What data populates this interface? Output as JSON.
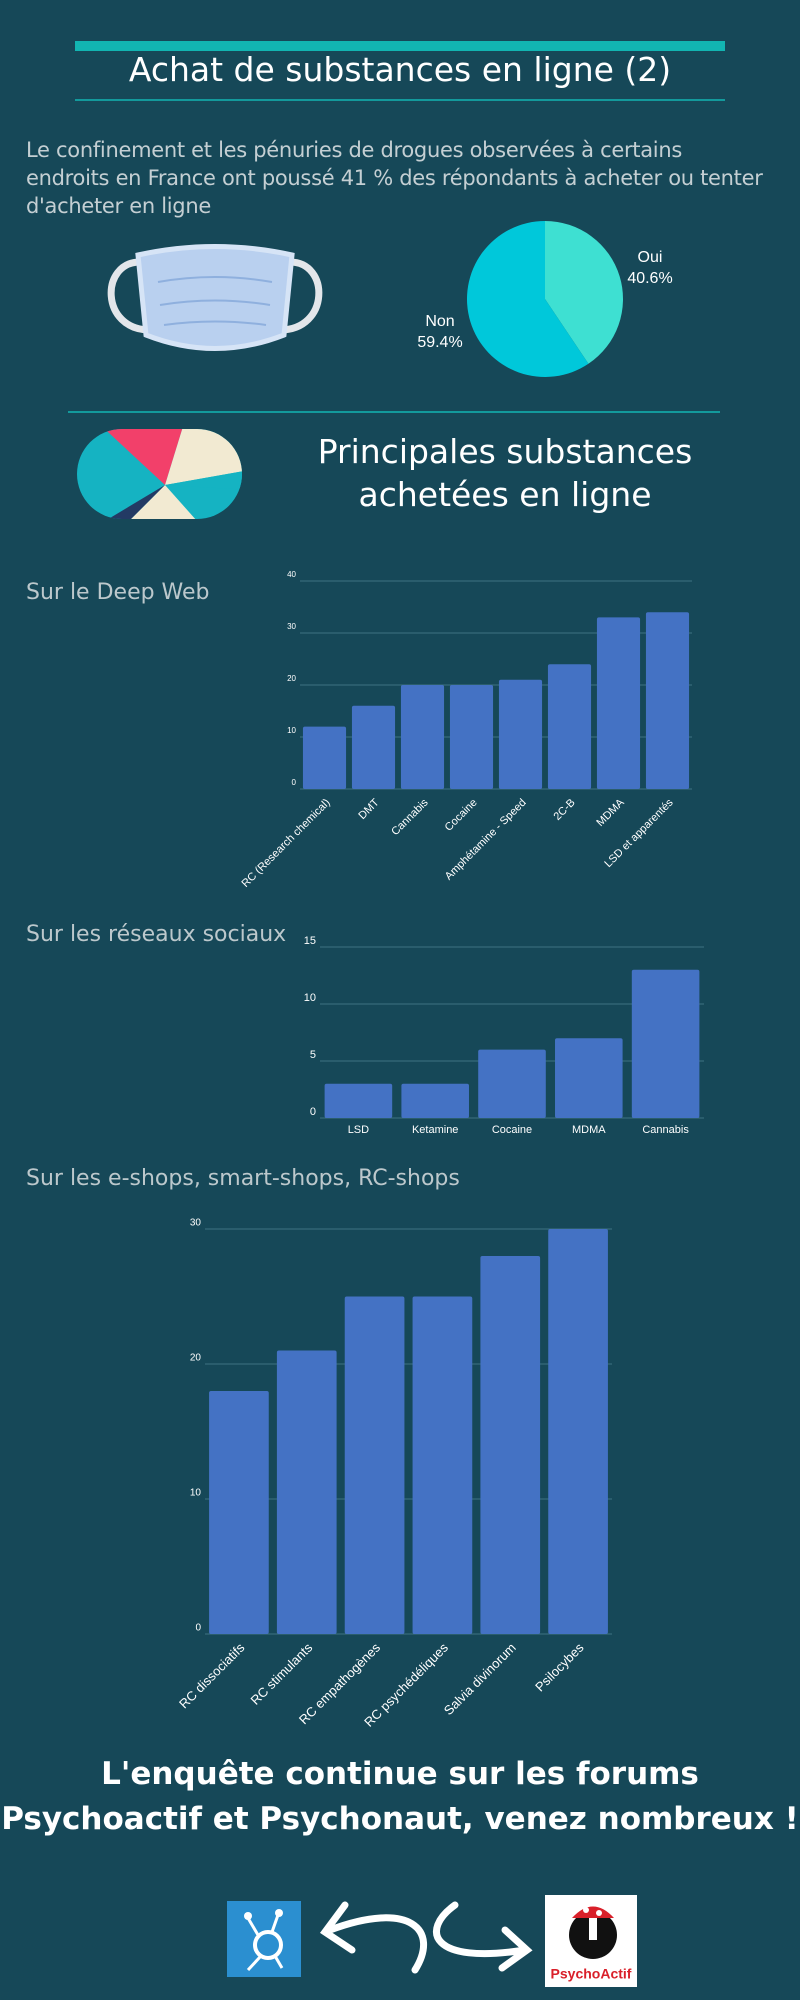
{
  "header": {
    "title": "Achat de substances en ligne (2)"
  },
  "intro": "Le confinement et les pénuries de drogues observées à certains endroits en France ont poussé 41 % des répondants à acheter ou tenter d'acheter en ligne",
  "heading": "Principales substances achetées en ligne",
  "footer": "L'enquête continue sur les forums Psychoactif et Psychonaut, venez nombreux !",
  "logo_text": "PsychoActif",
  "chart_data": [
    {
      "type": "pie",
      "categories": [
        "Oui",
        "Non"
      ],
      "values": [
        40.6,
        59.4
      ],
      "value_labels": [
        "40.6%",
        "59.4%"
      ],
      "colors": [
        "#3ee0d2",
        "#00c8da"
      ]
    },
    {
      "type": "bar",
      "title": "Sur le Deep Web",
      "categories": [
        "RC (Research chemical)",
        "DMT",
        "Cannabis",
        "Cocaine",
        "Amphétamine - Speed",
        "2C-B",
        "MDMA",
        "LSD et apparentés"
      ],
      "values": [
        12,
        16,
        20,
        20,
        21,
        24,
        33,
        34
      ],
      "color": "#4472c4",
      "ylim": [
        0,
        40
      ],
      "yticks": [
        0,
        10,
        20,
        30,
        40
      ],
      "grid": true
    },
    {
      "type": "bar",
      "title": "Sur les réseaux sociaux",
      "categories": [
        "LSD",
        "Ketamine",
        "Cocaine",
        "MDMA",
        "Cannabis"
      ],
      "values": [
        3,
        3,
        6,
        7,
        13
      ],
      "color": "#4472c4",
      "ylim": [
        0,
        15
      ],
      "yticks": [
        0,
        5,
        10,
        15
      ],
      "grid": true
    },
    {
      "type": "bar",
      "title": "Sur les e-shops, smart-shops, RC-shops",
      "categories": [
        "RC dissociatifs",
        "RC stimulants",
        "RC empathogènes",
        "RC psychédéliques",
        "Salvia divinorum",
        "Psilocybes"
      ],
      "values": [
        18,
        21,
        25,
        25,
        28,
        30
      ],
      "color": "#4472c4",
      "ylim": [
        0,
        30
      ],
      "yticks": [
        0,
        10,
        20,
        30
      ],
      "grid": true
    }
  ]
}
